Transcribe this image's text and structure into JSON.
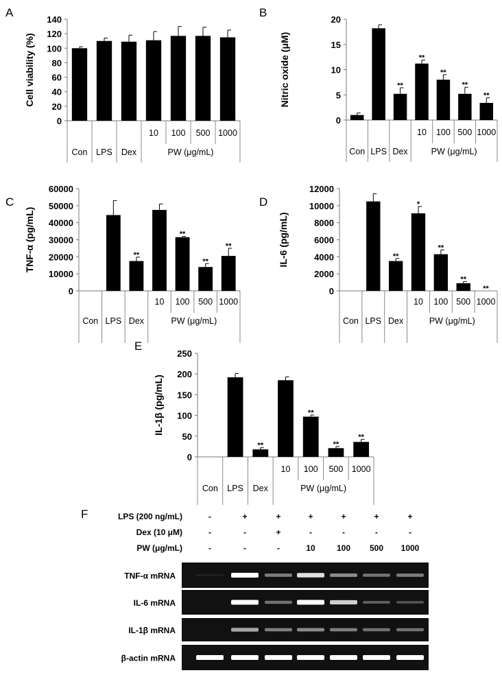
{
  "chart_data": [
    {
      "panel": "A",
      "type": "bar",
      "ylabel": "Cell viability (%)",
      "ylim": [
        0,
        140
      ],
      "yticks": [
        0,
        20,
        40,
        60,
        80,
        100,
        120,
        140
      ],
      "categories": [
        "Con",
        "LPS",
        "Dex",
        "10",
        "100",
        "500",
        "1000"
      ],
      "group_label": "PW (μg/mL)",
      "values": [
        100,
        110,
        109,
        111,
        117,
        117,
        115
      ],
      "errors": [
        2,
        4,
        9,
        12,
        13,
        12,
        10
      ],
      "significance": [
        "",
        "",
        "",
        "",
        "",
        "",
        ""
      ]
    },
    {
      "panel": "B",
      "type": "bar",
      "ylabel": "Nitric oxide (μM)",
      "ylim": [
        0,
        20
      ],
      "yticks": [
        0,
        5,
        10,
        15,
        20
      ],
      "categories": [
        "Con",
        "LPS",
        "Dex",
        "10",
        "100",
        "500",
        "1000"
      ],
      "group_label": "PW (μg/mL)",
      "values": [
        1.0,
        18.2,
        5.2,
        11.2,
        8.0,
        5.2,
        3.4
      ],
      "errors": [
        0.4,
        0.7,
        1.2,
        0.7,
        1.0,
        1.3,
        1.0
      ],
      "significance": [
        "",
        "",
        "**",
        "**",
        "**",
        "**",
        "**"
      ]
    },
    {
      "panel": "C",
      "type": "bar",
      "ylabel": "TNF-α (pg/mL)",
      "ylim": [
        0,
        60000
      ],
      "yticks": [
        0,
        10000,
        20000,
        30000,
        40000,
        50000,
        60000
      ],
      "categories": [
        "Con",
        "LPS",
        "Dex",
        "10",
        "100",
        "500",
        "1000"
      ],
      "group_label": "PW (μg/mL)",
      "values": [
        0,
        44500,
        17500,
        47500,
        31500,
        14000,
        20500
      ],
      "errors": [
        0,
        8500,
        2300,
        3500,
        500,
        2000,
        4500
      ],
      "significance": [
        "",
        "",
        "**",
        "",
        "**",
        "**",
        "**"
      ]
    },
    {
      "panel": "D",
      "type": "bar",
      "ylabel": "IL-6 (pg/mL)",
      "ylim": [
        0,
        12000
      ],
      "yticks": [
        0,
        2000,
        4000,
        6000,
        8000,
        10000,
        12000
      ],
      "categories": [
        "Con",
        "LPS",
        "Dex",
        "10",
        "100",
        "500",
        "1000"
      ],
      "group_label": "PW (μg/mL)",
      "values": [
        0,
        10500,
        3500,
        9100,
        4300,
        900,
        0
      ],
      "errors": [
        0,
        900,
        300,
        800,
        500,
        200,
        0
      ],
      "significance": [
        "",
        "",
        "**",
        "*",
        "**",
        "**",
        "**"
      ]
    },
    {
      "panel": "E",
      "type": "bar",
      "ylabel": "IL-1β (pg/mL)",
      "ylim": [
        0,
        250
      ],
      "yticks": [
        0,
        50,
        100,
        150,
        200,
        250
      ],
      "categories": [
        "Con",
        "LPS",
        "Dex",
        "10",
        "100",
        "500",
        "1000"
      ],
      "group_label": "PW (μg/mL)",
      "values": [
        0,
        192,
        18,
        185,
        97,
        21,
        36
      ],
      "errors": [
        0,
        9,
        4,
        8,
        4,
        4,
        6
      ],
      "significance": [
        "",
        "",
        "**",
        "",
        "**",
        "**",
        "**"
      ]
    }
  ],
  "gel": {
    "panel": "F",
    "treatments": [
      {
        "label": "LPS (200 ng/mL)",
        "values": [
          "-",
          "+",
          "+",
          "+",
          "+",
          "+",
          "+"
        ]
      },
      {
        "label": "Dex (10 μM)",
        "values": [
          "-",
          "-",
          "+",
          "-",
          "-",
          "-",
          "-"
        ]
      },
      {
        "label": "PW (μg/mL)",
        "values": [
          "-",
          "-",
          "-",
          "10",
          "100",
          "500",
          "1000"
        ]
      }
    ],
    "bands": [
      {
        "label": "TNF-α mRNA",
        "intensity": [
          0.05,
          1.0,
          0.55,
          0.9,
          0.6,
          0.5,
          0.55
        ]
      },
      {
        "label": "IL-6 mRNA",
        "intensity": [
          0.0,
          1.0,
          0.5,
          1.0,
          0.85,
          0.4,
          0.35
        ]
      },
      {
        "label": "IL-1β mRNA",
        "intensity": [
          0.0,
          0.7,
          0.55,
          0.6,
          0.55,
          0.5,
          0.5
        ]
      },
      {
        "label": "β-actin mRNA",
        "intensity": [
          1.0,
          1.0,
          1.0,
          1.0,
          1.0,
          1.0,
          1.0
        ]
      }
    ]
  }
}
